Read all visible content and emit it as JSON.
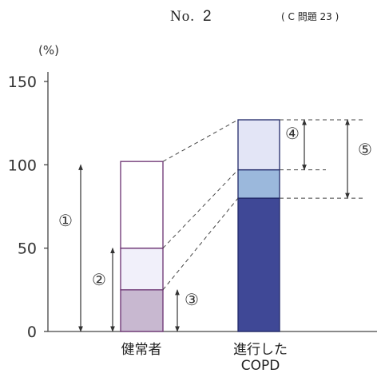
{
  "header": {
    "no_label": "No.",
    "no_value": "2",
    "ref": "( C  問題 23 )"
  },
  "chart_data": {
    "type": "bar",
    "ylabel": "(%)",
    "ylim": [
      0,
      150
    ],
    "yticks": [
      "0",
      "50",
      "100",
      "150"
    ],
    "grid": false,
    "categories": [
      "健常者",
      "進行した COPD"
    ],
    "category_lines": [
      [
        "健常者"
      ],
      [
        "進行した",
        "COPD"
      ]
    ],
    "bars": [
      {
        "category": "健常者",
        "segments": [
          {
            "from": 0,
            "to": 25,
            "color": "#c8b8d0"
          },
          {
            "from": 25,
            "to": 50,
            "color": "#f1f0fa"
          },
          {
            "from": 50,
            "to": 102,
            "color": "#ffffff"
          }
        ]
      },
      {
        "category": "進行した COPD",
        "segments": [
          {
            "from": 0,
            "to": 80,
            "color": "#3f4896"
          },
          {
            "from": 80,
            "to": 97,
            "color": "#9bb8dc"
          },
          {
            "from": 97,
            "to": 127,
            "color": "#e3e5f6"
          }
        ]
      }
    ],
    "annotations": [
      {
        "label": "①",
        "bar": 0,
        "from": 0,
        "to": 100
      },
      {
        "label": "②",
        "bar": 0,
        "from": 0,
        "to": 50
      },
      {
        "label": "③",
        "bar": 0,
        "from": 0,
        "to": 25
      },
      {
        "label": "④",
        "bar": 1,
        "from": 97,
        "to": 127
      },
      {
        "label": "⑤",
        "bar": 1,
        "from": 80,
        "to": 127
      }
    ],
    "colors": {
      "axis": "#444444",
      "bar_edge_normal": "#6a3070",
      "bar_edge_copd": "#222a6a",
      "arrow": "#333333"
    }
  }
}
